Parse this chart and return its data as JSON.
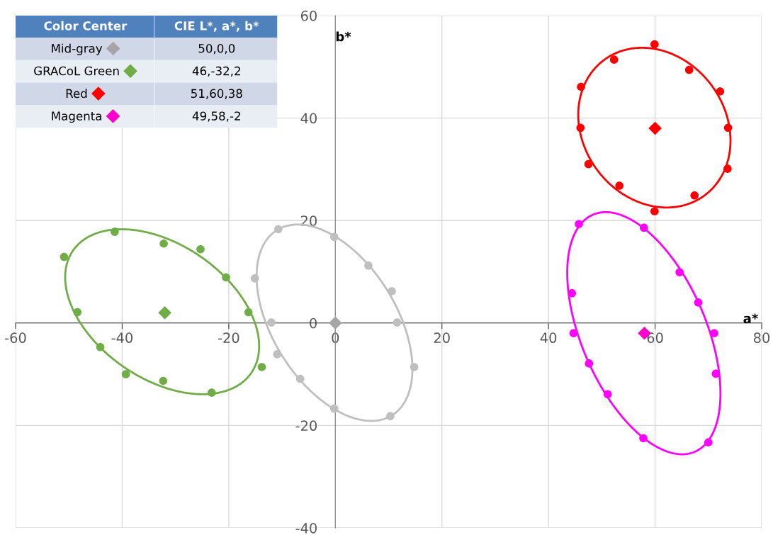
{
  "chart_data": {
    "type": "scatter",
    "xlabel": "a*",
    "ylabel": "b*",
    "xlim": [
      -60,
      80
    ],
    "xticks": [
      -60,
      -40,
      -20,
      0,
      20,
      40,
      60,
      80
    ],
    "ylim": [
      -40,
      60
    ],
    "yticks": [
      -40,
      -20,
      0,
      20,
      40,
      60
    ],
    "grid": true,
    "legend": "top left",
    "annotations": [
      "Color Center",
      "CIE L*, a*, b*",
      "50,0,0",
      "46,-32,2",
      "51,60,38",
      "49,58,-2"
    ],
    "series": [
      {
        "marker": "circle",
        "color": "#bfbfbf",
        "x": [
          -10.7,
          -0.2,
          6.2,
          10.6,
          -15.1,
          -12.0,
          11.6,
          -10.9,
          14.8,
          -6.6,
          -0.2,
          10.3
        ],
        "values": [
          18.3,
          16.8,
          11.2,
          6.2,
          8.7,
          0.1,
          0.1,
          -6.1,
          -8.6,
          -10.9,
          -16.7,
          -18.2
        ]
      },
      {
        "marker": "circle",
        "color": "#70ad47",
        "x": [
          -50.9,
          -41.4,
          -32.2,
          -25.3,
          -20.5,
          -48.4,
          -16.3,
          -44.1,
          -13.8,
          -39.3,
          -32.3,
          -23.2
        ],
        "values": [
          12.9,
          17.8,
          15.5,
          14.4,
          8.9,
          2.1,
          2.1,
          -4.7,
          -8.6,
          -10.0,
          -11.3,
          -13.6
        ]
      },
      {
        "marker": "circle",
        "color": "#ff0000",
        "x": [
          59.9,
          52.3,
          66.4,
          72.2,
          46.1,
          46.0,
          73.7,
          47.5,
          73.6,
          53.3,
          67.4,
          59.9
        ],
        "values": [
          54.4,
          51.4,
          49.4,
          45.2,
          46.1,
          38.1,
          38.1,
          31.0,
          30.1,
          26.8,
          24.9,
          21.8
        ]
      },
      {
        "marker": "circle",
        "color": "#ff00ff",
        "x": [
          45.7,
          57.9,
          64.6,
          44.4,
          68.1,
          44.7,
          71.1,
          47.6,
          71.4,
          51.1,
          57.8,
          70.0
        ],
        "values": [
          19.3,
          18.6,
          9.9,
          5.8,
          4.0,
          -2.0,
          -2.0,
          -7.9,
          -9.9,
          -13.9,
          -22.5,
          -23.3
        ]
      },
      {
        "marker": "diamond",
        "name": "Mid-gray",
        "color": "#a5a5a5",
        "x": [
          0
        ],
        "values": [
          0
        ]
      },
      {
        "marker": "diamond",
        "name": "GRACoL Green",
        "color": "#70ad47",
        "x": [
          -32
        ],
        "values": [
          2
        ]
      },
      {
        "marker": "diamond",
        "name": "Red",
        "color": "#ff0000",
        "x": [
          60
        ],
        "values": [
          38
        ]
      },
      {
        "marker": "diamond",
        "name": "Magenta",
        "color": "#ff00cc",
        "x": [
          58
        ],
        "values": [
          -2
        ]
      }
    ]
  }
}
